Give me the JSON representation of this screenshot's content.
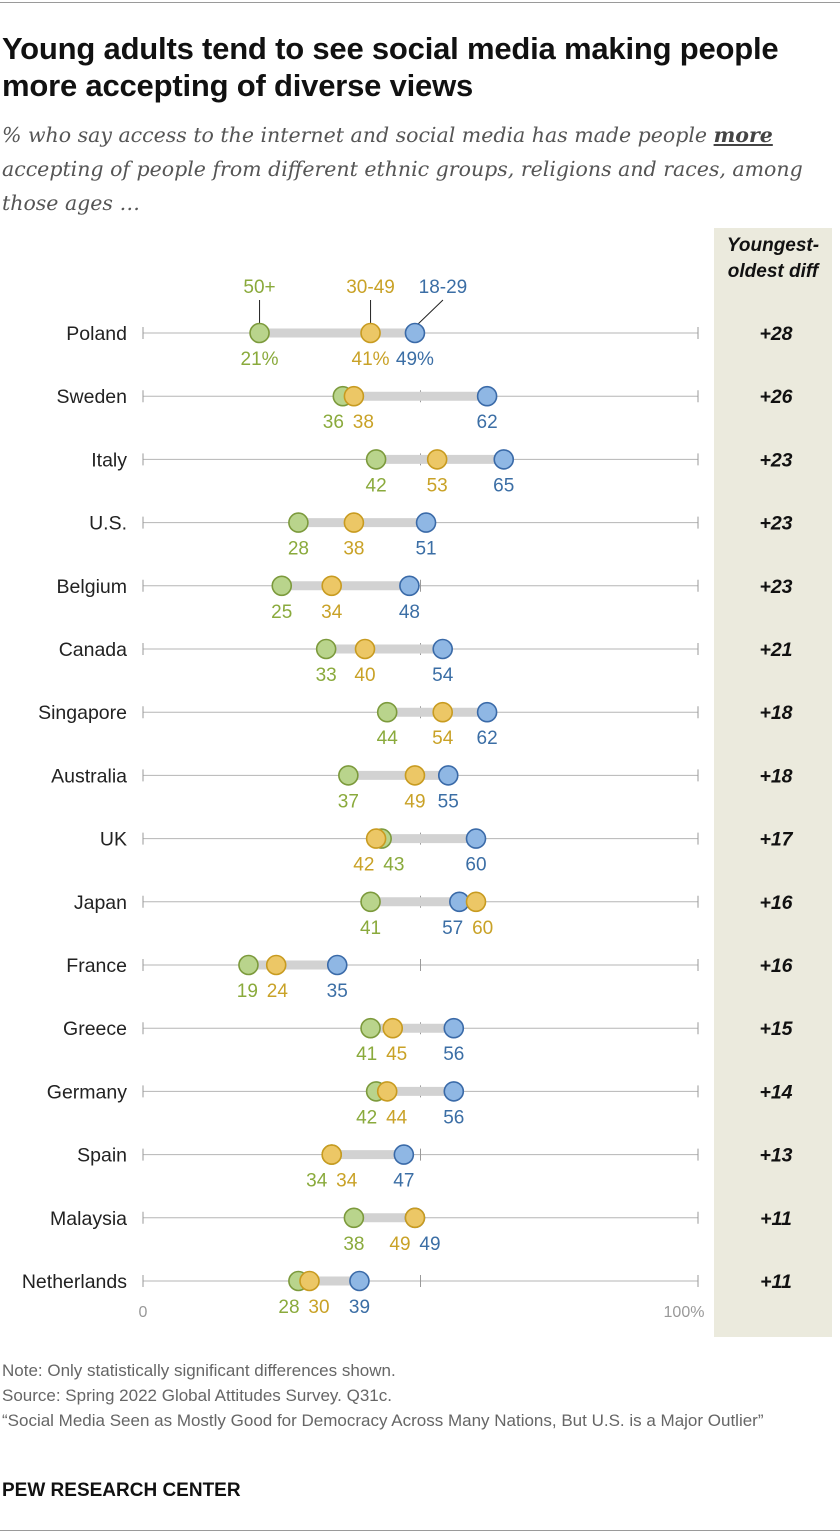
{
  "title": "Young adults tend to see social media making people more accepting of diverse views",
  "subtitle": {
    "before": "% who say access to the internet and social media has made people ",
    "emphasis": "more",
    "after": " accepting of people from different ethnic groups, religions and races, among those ages …"
  },
  "diff_header": "Youngest-oldest diff",
  "chart_data": {
    "type": "dot",
    "xlim": [
      0,
      100
    ],
    "x_ticks": [
      "0",
      "100%"
    ],
    "legend_placement": "above first row",
    "series": [
      {
        "name": "50+",
        "color": "#8aaa3c",
        "fill": "#b9d48c",
        "stroke": "#7c9a3c"
      },
      {
        "name": "30-49",
        "color": "#c9a227",
        "fill": "#ecc766",
        "stroke": "#c89b20"
      },
      {
        "name": "18-29",
        "color": "#3b6ea5",
        "fill": "#8fb7e4",
        "stroke": "#3a6aa8"
      }
    ],
    "rows": [
      {
        "country": "Poland",
        "values": [
          21,
          41,
          49
        ],
        "labels": [
          "21%",
          "41%",
          "49%"
        ],
        "diff": "+28"
      },
      {
        "country": "Sweden",
        "values": [
          36,
          38,
          62
        ],
        "labels": [
          "36",
          "38",
          "62"
        ],
        "diff": "+26"
      },
      {
        "country": "Italy",
        "values": [
          42,
          53,
          65
        ],
        "labels": [
          "42",
          "53",
          "65"
        ],
        "diff": "+23"
      },
      {
        "country": "U.S.",
        "values": [
          28,
          38,
          51
        ],
        "labels": [
          "28",
          "38",
          "51"
        ],
        "diff": "+23"
      },
      {
        "country": "Belgium",
        "values": [
          25,
          34,
          48
        ],
        "labels": [
          "25",
          "34",
          "48"
        ],
        "diff": "+23"
      },
      {
        "country": "Canada",
        "values": [
          33,
          40,
          54
        ],
        "labels": [
          "33",
          "40",
          "54"
        ],
        "diff": "+21"
      },
      {
        "country": "Singapore",
        "values": [
          44,
          54,
          62
        ],
        "labels": [
          "44",
          "54",
          "62"
        ],
        "diff": "+18"
      },
      {
        "country": "Australia",
        "values": [
          37,
          49,
          55
        ],
        "labels": [
          "37",
          "49",
          "55"
        ],
        "diff": "+18"
      },
      {
        "country": "UK",
        "values": [
          43,
          42,
          60
        ],
        "labels": [
          "43",
          "42",
          "60"
        ],
        "diff": "+17"
      },
      {
        "country": "Japan",
        "values": [
          41,
          60,
          57
        ],
        "labels": [
          "41",
          "60",
          "57"
        ],
        "diff": "+16"
      },
      {
        "country": "France",
        "values": [
          19,
          24,
          35
        ],
        "labels": [
          "19",
          "24",
          "35"
        ],
        "diff": "+16"
      },
      {
        "country": "Greece",
        "values": [
          41,
          45,
          56
        ],
        "labels": [
          "41",
          "45",
          "56"
        ],
        "diff": "+15"
      },
      {
        "country": "Germany",
        "values": [
          42,
          44,
          56
        ],
        "labels": [
          "42",
          "44",
          "56"
        ],
        "diff": "+14"
      },
      {
        "country": "Spain",
        "values": [
          34,
          34,
          47
        ],
        "labels": [
          "34",
          "34",
          "47"
        ],
        "diff": "+13"
      },
      {
        "country": "Malaysia",
        "values": [
          38,
          49,
          49
        ],
        "labels": [
          "38",
          "49",
          "49"
        ],
        "diff": "+11"
      },
      {
        "country": "Netherlands",
        "values": [
          28,
          30,
          39
        ],
        "labels": [
          "28",
          "30",
          "39"
        ],
        "diff": "+11"
      }
    ]
  },
  "notes": {
    "note": "Note: Only statistically significant differences shown.",
    "source": "Source: Spring 2022 Global Attitudes Survey. Q31c.",
    "report": "“Social Media Seen as Mostly Good for Democracy Across Many Nations, But U.S. is a Major Outlier”"
  },
  "brand": "PEW RESEARCH CENTER"
}
